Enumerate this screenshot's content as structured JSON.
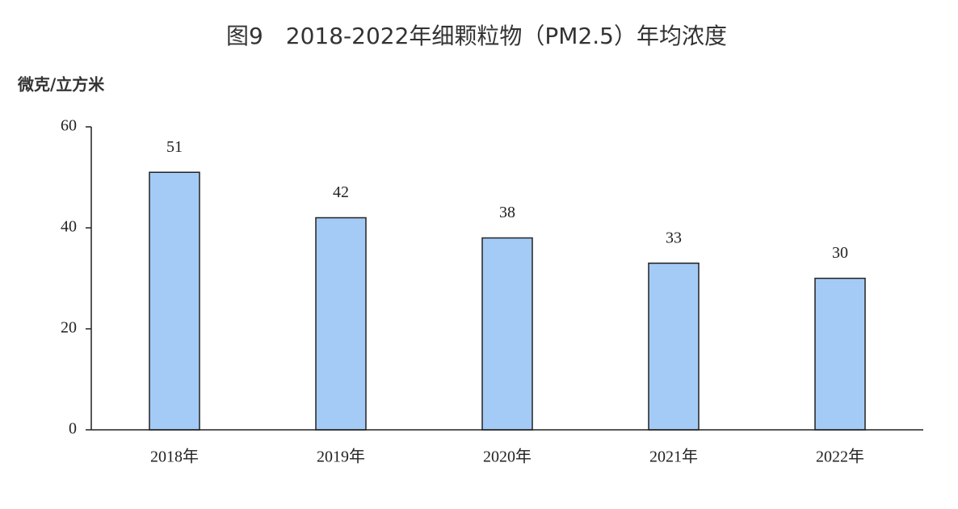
{
  "chart_data": {
    "type": "bar",
    "title": "图9　2018-2022年细颗粒物（PM2.5）年均浓度",
    "y_label": "微克/立方米",
    "categories": [
      "2018年",
      "2019年",
      "2020年",
      "2021年",
      "2022年"
    ],
    "values": [
      51,
      42,
      38,
      33,
      30
    ],
    "color": "#a4cbf5",
    "ylim": [
      0,
      60
    ],
    "yticks": [
      0,
      20,
      40,
      60
    ],
    "grid": false
  }
}
